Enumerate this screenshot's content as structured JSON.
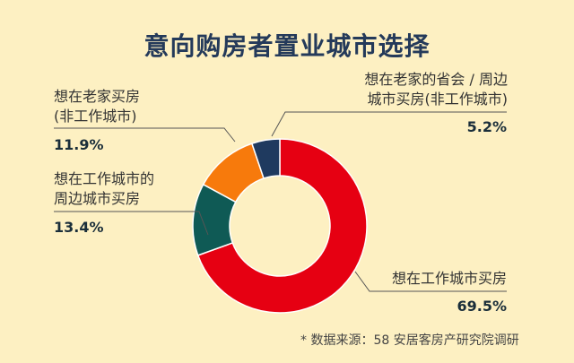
{
  "title": "意向购房者置业城市选择",
  "source": "* 数据来源：58 安居客房产研究院调研",
  "chart_data": {
    "type": "pie",
    "donut": true,
    "title": "意向购房者置业城市选择",
    "slices": [
      {
        "label": "想在工作城市买房",
        "value": 69.5,
        "value_label": "69.5%",
        "color": "#e60012"
      },
      {
        "label": "想在工作城市的周边城市买房",
        "value": 13.4,
        "value_label": "13.4%",
        "color": "#0f5a55"
      },
      {
        "label": "想在老家买房（非工作城市）",
        "value": 11.9,
        "value_label": "11.9%",
        "color": "#f77a0c"
      },
      {
        "label": "想在老家的省会 / 周边城市买房（非工作城市）",
        "value": 5.2,
        "value_label": "5.2%",
        "color": "#1f3a5f"
      }
    ],
    "label_lines": {
      "0": [
        "想在工作城市买房"
      ],
      "1": [
        "想在工作城市的",
        "周边城市买房"
      ],
      "2": [
        "想在老家买房",
        "(非工作城市)"
      ],
      "3": [
        "想在老家的省会 / 周边",
        "城市买房(非工作城市)"
      ]
    }
  }
}
